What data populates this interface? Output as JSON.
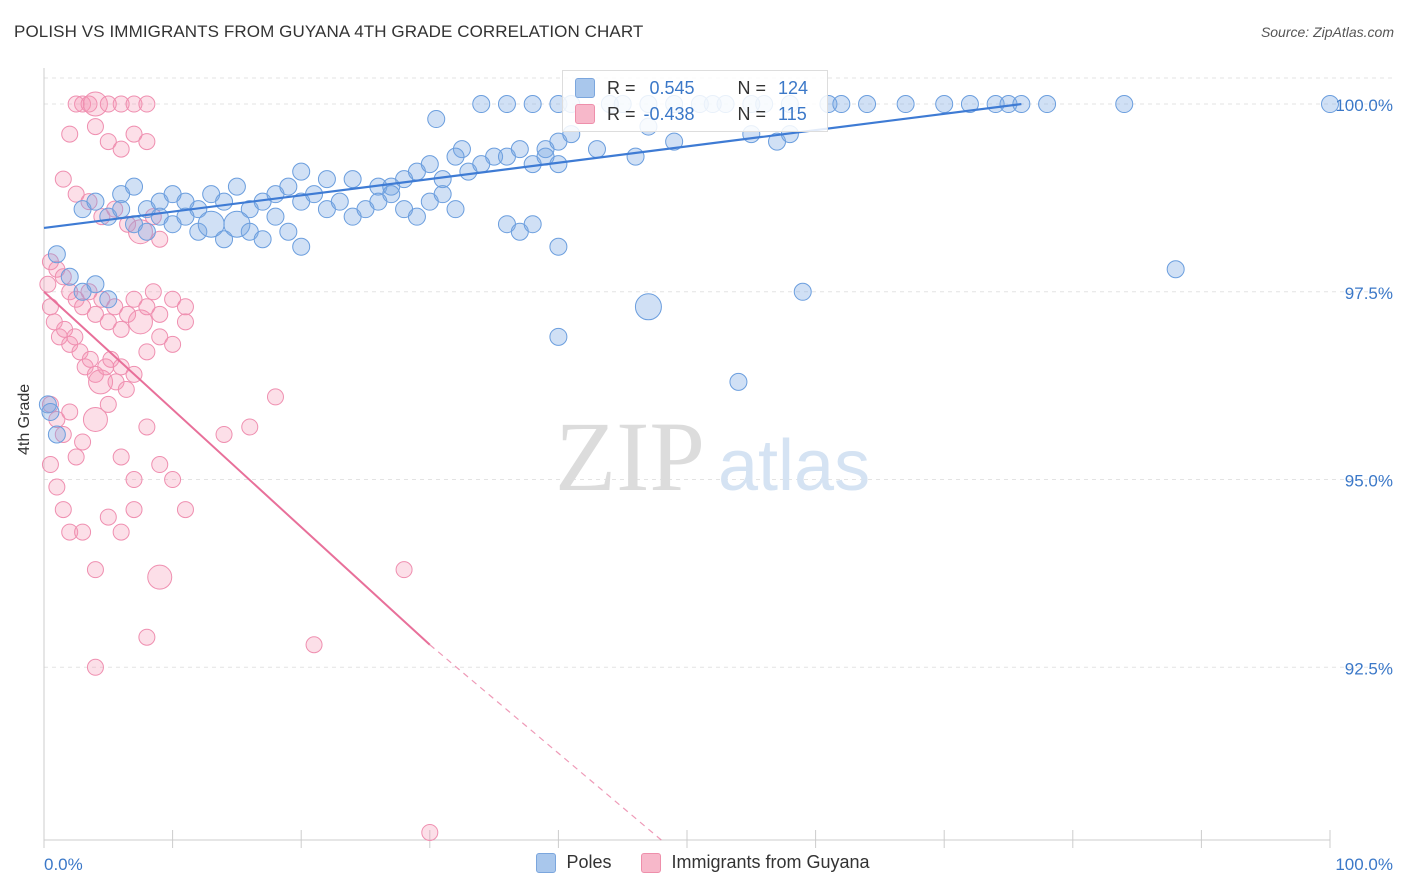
{
  "title": "POLISH VS IMMIGRANTS FROM GUYANA 4TH GRADE CORRELATION CHART",
  "source": "Source: ZipAtlas.com",
  "watermark": {
    "zip": "ZIP",
    "atlas": "atlas"
  },
  "legend": {
    "r_label": "R =",
    "n_label": "N =",
    "rows": [
      {
        "r": "0.545",
        "n": "124",
        "color": "#a9c7ec",
        "border": "#7ba6dd"
      },
      {
        "r": "-0.438",
        "n": "115",
        "color": "#f7b8ca",
        "border": "#ee8fab"
      }
    ]
  },
  "bottom_legend": [
    "Poles",
    "Immigrants from Guyana"
  ],
  "colors": {
    "blue": "#3e7bd4",
    "pink": "#e8709a",
    "blue_fill": "rgba(120,165,225,0.35)",
    "pink_fill": "rgba(245,150,180,0.30)",
    "tick_label": "#3b78c8"
  },
  "chart_data": {
    "type": "scatter",
    "xlabel": "",
    "ylabel": "4th Grade",
    "xlim": [
      0,
      100
    ],
    "ylim": [
      90.2,
      100.4
    ],
    "x_tick_labels": [
      {
        "x": 0,
        "label": "0.0%"
      },
      {
        "x": 100,
        "label": "100.0%"
      }
    ],
    "y_ticks": [
      {
        "y": 100.0,
        "label": "100.0%"
      },
      {
        "y": 97.5,
        "label": "97.5%"
      },
      {
        "y": 95.0,
        "label": "95.0%"
      },
      {
        "y": 92.5,
        "label": "92.5%"
      }
    ],
    "series": [
      {
        "name": "Poles",
        "trend": {
          "x0": 0,
          "y0": 98.35,
          "x1": 76,
          "y1": 100.0
        },
        "points": [
          [
            34,
            100
          ],
          [
            36,
            100
          ],
          [
            38,
            100
          ],
          [
            40,
            100
          ],
          [
            41,
            100
          ],
          [
            44,
            100
          ],
          [
            45,
            100
          ],
          [
            47,
            100
          ],
          [
            49,
            100
          ],
          [
            51,
            100
          ],
          [
            52,
            100
          ],
          [
            53,
            100
          ],
          [
            55,
            100
          ],
          [
            56,
            100
          ],
          [
            58,
            100
          ],
          [
            61,
            100
          ],
          [
            62,
            100
          ],
          [
            64,
            100
          ],
          [
            67,
            100
          ],
          [
            70,
            100
          ],
          [
            72,
            100
          ],
          [
            74,
            100
          ],
          [
            75,
            100
          ],
          [
            76,
            100
          ],
          [
            78,
            100
          ],
          [
            84,
            100
          ],
          [
            100,
            100
          ],
          [
            30.5,
            99.8
          ],
          [
            32.5,
            99.4
          ],
          [
            35,
            99.3
          ],
          [
            39,
            99.4
          ],
          [
            40,
            99.5
          ],
          [
            41,
            99.6
          ],
          [
            47,
            99.7
          ],
          [
            49,
            99.5
          ],
          [
            55,
            99.6
          ],
          [
            57,
            99.5
          ],
          [
            58,
            99.6
          ],
          [
            20,
            99.1
          ],
          [
            22,
            99.0
          ],
          [
            24,
            99.0
          ],
          [
            26,
            98.9
          ],
          [
            27,
            98.9
          ],
          [
            28,
            99.0
          ],
          [
            29,
            99.1
          ],
          [
            30,
            99.2
          ],
          [
            31,
            99.0
          ],
          [
            32,
            99.3
          ],
          [
            33,
            99.1
          ],
          [
            34,
            99.2
          ],
          [
            36,
            99.3
          ],
          [
            37,
            99.4
          ],
          [
            38,
            99.2
          ],
          [
            39,
            99.3
          ],
          [
            40,
            99.2
          ],
          [
            43,
            99.4
          ],
          [
            46,
            99.3
          ],
          [
            6,
            98.8
          ],
          [
            7,
            98.9
          ],
          [
            8,
            98.6
          ],
          [
            9,
            98.7
          ],
          [
            10,
            98.8
          ],
          [
            11,
            98.7
          ],
          [
            12,
            98.6
          ],
          [
            13,
            98.8
          ],
          [
            14,
            98.7
          ],
          [
            15,
            98.9
          ],
          [
            16,
            98.6
          ],
          [
            17,
            98.7
          ],
          [
            18,
            98.8
          ],
          [
            19,
            98.9
          ],
          [
            20,
            98.7
          ],
          [
            21,
            98.8
          ],
          [
            22,
            98.6
          ],
          [
            23,
            98.7
          ],
          [
            24,
            98.5
          ],
          [
            25,
            98.6
          ],
          [
            26,
            98.7
          ],
          [
            27,
            98.8
          ],
          [
            28,
            98.6
          ],
          [
            29,
            98.5
          ],
          [
            30,
            98.7
          ],
          [
            31,
            98.8
          ],
          [
            32,
            98.6
          ],
          [
            3,
            98.6
          ],
          [
            4,
            98.7
          ],
          [
            5,
            98.5
          ],
          [
            6,
            98.6
          ],
          [
            7,
            98.4
          ],
          [
            8,
            98.3
          ],
          [
            9,
            98.5
          ],
          [
            10,
            98.4
          ],
          [
            11,
            98.5
          ],
          [
            12,
            98.3
          ],
          [
            13,
            98.4
          ],
          [
            14,
            98.2
          ],
          [
            15,
            98.4
          ],
          [
            16,
            98.3
          ],
          [
            17,
            98.2
          ],
          [
            18,
            98.5
          ],
          [
            19,
            98.3
          ],
          [
            20,
            98.1
          ],
          [
            36,
            98.4
          ],
          [
            37,
            98.3
          ],
          [
            38,
            98.4
          ],
          [
            1,
            98.0
          ],
          [
            2,
            97.7
          ],
          [
            3,
            97.5
          ],
          [
            4,
            97.6
          ],
          [
            5,
            97.4
          ],
          [
            40,
            98.1
          ],
          [
            88,
            97.8
          ],
          [
            59,
            97.5
          ],
          [
            47,
            97.3
          ],
          [
            40,
            96.9
          ],
          [
            54,
            96.3
          ],
          [
            0.3,
            96.0
          ],
          [
            0.5,
            95.9
          ],
          [
            1,
            95.6
          ]
        ]
      },
      {
        "name": "Immigrants from Guyana",
        "trend": {
          "x0": 0,
          "y0": 97.5,
          "x1": 30,
          "y1": 92.8
        },
        "trend_dashed": {
          "x0": 30,
          "y0": 92.8,
          "x1": 48,
          "y1": 90.0
        },
        "points": [
          [
            2.5,
            100
          ],
          [
            3,
            100
          ],
          [
            3.5,
            100
          ],
          [
            4,
            100
          ],
          [
            5,
            100
          ],
          [
            6,
            100
          ],
          [
            7,
            100
          ],
          [
            8,
            100
          ],
          [
            2,
            99.6
          ],
          [
            4,
            99.7
          ],
          [
            5,
            99.5
          ],
          [
            6,
            99.4
          ],
          [
            7,
            99.6
          ],
          [
            8,
            99.5
          ],
          [
            1.5,
            99.0
          ],
          [
            2.5,
            98.8
          ],
          [
            3.5,
            98.7
          ],
          [
            4.5,
            98.5
          ],
          [
            5.5,
            98.6
          ],
          [
            6.5,
            98.4
          ],
          [
            7.5,
            98.3
          ],
          [
            8.5,
            98.5
          ],
          [
            9,
            98.2
          ],
          [
            0.5,
            97.9
          ],
          [
            1,
            97.8
          ],
          [
            1.5,
            97.7
          ],
          [
            2,
            97.5
          ],
          [
            2.5,
            97.4
          ],
          [
            3,
            97.3
          ],
          [
            3.5,
            97.5
          ],
          [
            4,
            97.2
          ],
          [
            4.5,
            97.4
          ],
          [
            5,
            97.1
          ],
          [
            5.5,
            97.3
          ],
          [
            6,
            97.0
          ],
          [
            6.5,
            97.2
          ],
          [
            7,
            97.4
          ],
          [
            7.5,
            97.1
          ],
          [
            8,
            97.3
          ],
          [
            8.5,
            97.5
          ],
          [
            9,
            97.2
          ],
          [
            10,
            97.4
          ],
          [
            11,
            97.3
          ],
          [
            0.3,
            97.6
          ],
          [
            0.5,
            97.3
          ],
          [
            0.8,
            97.1
          ],
          [
            1.2,
            96.9
          ],
          [
            1.6,
            97.0
          ],
          [
            2,
            96.8
          ],
          [
            2.4,
            96.9
          ],
          [
            2.8,
            96.7
          ],
          [
            3.2,
            96.5
          ],
          [
            3.6,
            96.6
          ],
          [
            4,
            96.4
          ],
          [
            4.4,
            96.3
          ],
          [
            4.8,
            96.5
          ],
          [
            5.2,
            96.6
          ],
          [
            5.6,
            96.3
          ],
          [
            6,
            96.5
          ],
          [
            6.4,
            96.2
          ],
          [
            7,
            96.4
          ],
          [
            8,
            96.7
          ],
          [
            9,
            96.9
          ],
          [
            10,
            96.8
          ],
          [
            11,
            97.1
          ],
          [
            0.5,
            96.0
          ],
          [
            1,
            95.8
          ],
          [
            1.5,
            95.6
          ],
          [
            2,
            95.9
          ],
          [
            2.5,
            95.3
          ],
          [
            3,
            95.5
          ],
          [
            4,
            95.8
          ],
          [
            5,
            96.0
          ],
          [
            6,
            95.3
          ],
          [
            7,
            95.0
          ],
          [
            8,
            95.7
          ],
          [
            9,
            95.2
          ],
          [
            10,
            95.0
          ],
          [
            11,
            94.6
          ],
          [
            0.5,
            95.2
          ],
          [
            1,
            94.9
          ],
          [
            1.5,
            94.6
          ],
          [
            2,
            94.3
          ],
          [
            3,
            94.3
          ],
          [
            5,
            94.5
          ],
          [
            6,
            94.3
          ],
          [
            7,
            94.6
          ],
          [
            4,
            93.8
          ],
          [
            9,
            93.7
          ],
          [
            14,
            95.6
          ],
          [
            16,
            95.7
          ],
          [
            18,
            96.1
          ],
          [
            28,
            93.8
          ],
          [
            21,
            92.8
          ],
          [
            4,
            92.5
          ],
          [
            8,
            92.9
          ],
          [
            30,
            90.3
          ]
        ]
      }
    ]
  }
}
